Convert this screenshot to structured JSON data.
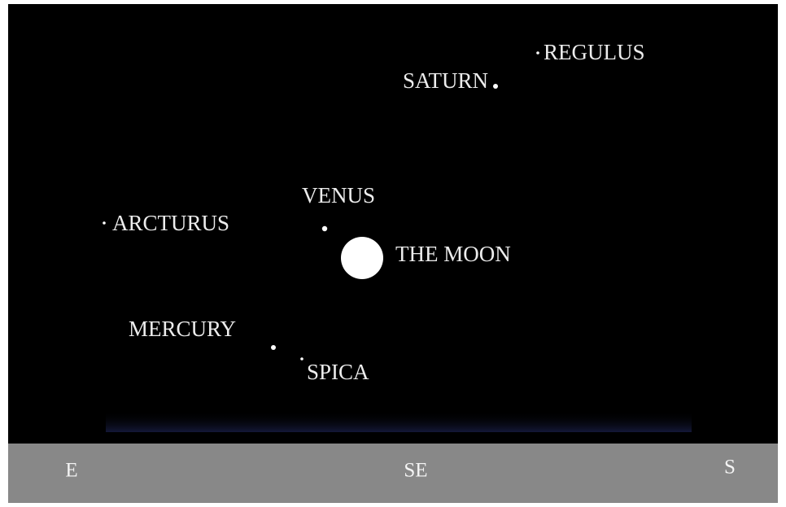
{
  "objects": [
    {
      "label": "REGULUS"
    },
    {
      "label": "SATURN"
    },
    {
      "label": "VENUS"
    },
    {
      "label": "ARCTURUS"
    },
    {
      "label": "THE MOON"
    },
    {
      "label": "MERCURY"
    },
    {
      "label": "SPICA"
    }
  ],
  "horizon": {
    "directions": [
      "E",
      "SE",
      "S"
    ]
  }
}
